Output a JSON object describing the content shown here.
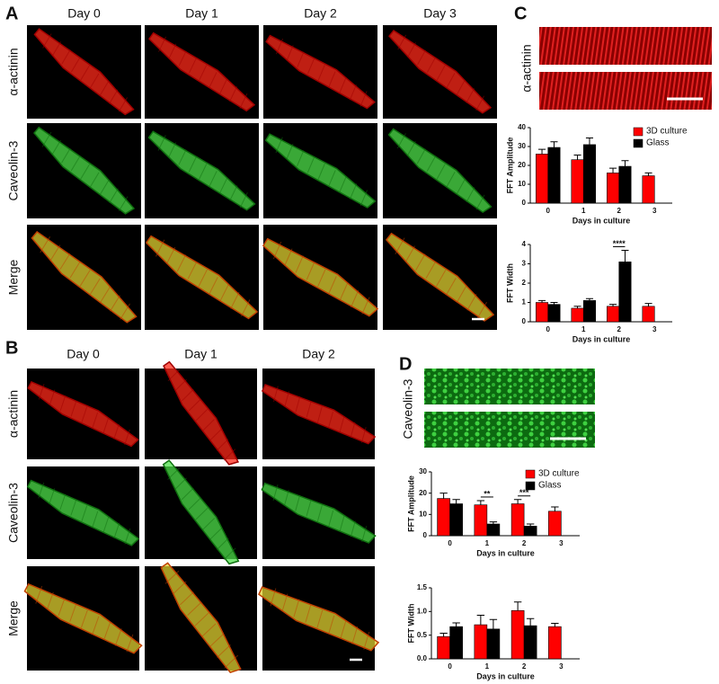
{
  "panels": {
    "A": {
      "label": "A",
      "columns": [
        "Day 0",
        "Day 1",
        "Day 2",
        "Day 3"
      ],
      "rows": [
        "α-actinin",
        "Caveolin-3",
        "Merge"
      ]
    },
    "B": {
      "label": "B",
      "columns": [
        "Day 0",
        "Day 1",
        "Day 2"
      ],
      "rows": [
        "α-actinin",
        "Caveolin-3",
        "Merge"
      ]
    },
    "C": {
      "label": "C",
      "strip_label": "α-actinin"
    },
    "D": {
      "label": "D",
      "strip_label": "Caveolin-3"
    }
  },
  "chart_data": [
    {
      "type": "bar",
      "ylabel": "FFT Amplitude",
      "xlabel": "Days in culture",
      "categories": [
        "0",
        "1",
        "2",
        "3"
      ],
      "series": [
        {
          "name": "3D culture",
          "color": "#ff0000",
          "values": [
            26,
            23,
            16,
            14.5
          ],
          "errors": [
            2.5,
            2.5,
            2.5,
            1.5
          ]
        },
        {
          "name": "Glass",
          "color": "#000000",
          "values": [
            29.5,
            31,
            19.5,
            null
          ],
          "errors": [
            3,
            3.5,
            3,
            null
          ]
        }
      ],
      "ylim": [
        0,
        40
      ],
      "yticks": [
        0,
        10,
        20,
        30,
        40
      ],
      "legend": "upper right"
    },
    {
      "type": "bar",
      "ylabel": "FFT Width",
      "xlabel": "Days in culture",
      "categories": [
        "0",
        "1",
        "2",
        "3"
      ],
      "series": [
        {
          "color": "#ff0000",
          "values": [
            1.0,
            0.7,
            0.8,
            0.8
          ],
          "errors": [
            0.1,
            0.1,
            0.1,
            0.15
          ]
        },
        {
          "color": "#000000",
          "values": [
            0.9,
            1.1,
            3.1,
            null
          ],
          "errors": [
            0.1,
            0.1,
            0.6,
            null
          ]
        }
      ],
      "ylim": [
        0,
        4
      ],
      "yticks": [
        0,
        1,
        2,
        3,
        4
      ],
      "annotations": [
        {
          "text": "****",
          "category": "2"
        }
      ]
    },
    {
      "type": "bar",
      "ylabel": "FFT Amplitude",
      "xlabel": "Days in culture",
      "categories": [
        "0",
        "1",
        "2",
        "3"
      ],
      "series": [
        {
          "name": "3D culture",
          "color": "#ff0000",
          "values": [
            17.5,
            14.5,
            15,
            11.5
          ],
          "errors": [
            2.5,
            2,
            2,
            2
          ]
        },
        {
          "name": "Glass",
          "color": "#000000",
          "values": [
            15,
            5.5,
            4.5,
            null
          ],
          "errors": [
            2,
            1,
            1,
            null
          ]
        }
      ],
      "ylim": [
        0,
        30
      ],
      "yticks": [
        0,
        10,
        20,
        30
      ],
      "legend": "upper right",
      "annotations": [
        {
          "text": "**",
          "category": "1"
        },
        {
          "text": "***",
          "category": "2"
        }
      ]
    },
    {
      "type": "bar",
      "ylabel": "FFT Width",
      "xlabel": "Days in culture",
      "categories": [
        "0",
        "1",
        "2",
        "3"
      ],
      "series": [
        {
          "color": "#ff0000",
          "values": [
            0.47,
            0.72,
            1.02,
            0.68
          ],
          "errors": [
            0.07,
            0.2,
            0.18,
            0.07
          ]
        },
        {
          "color": "#000000",
          "values": [
            0.68,
            0.63,
            0.7,
            null
          ],
          "errors": [
            0.08,
            0.2,
            0.15,
            null
          ]
        }
      ],
      "ylim": [
        0,
        1.5
      ],
      "yticks": [
        {
          "value": 0,
          "label": "0.0"
        },
        {
          "value": 0.5,
          "label": "0.5"
        },
        {
          "value": 1.0,
          "label": "1.0"
        },
        {
          "value": 1.5,
          "label": "1.5"
        }
      ]
    }
  ]
}
